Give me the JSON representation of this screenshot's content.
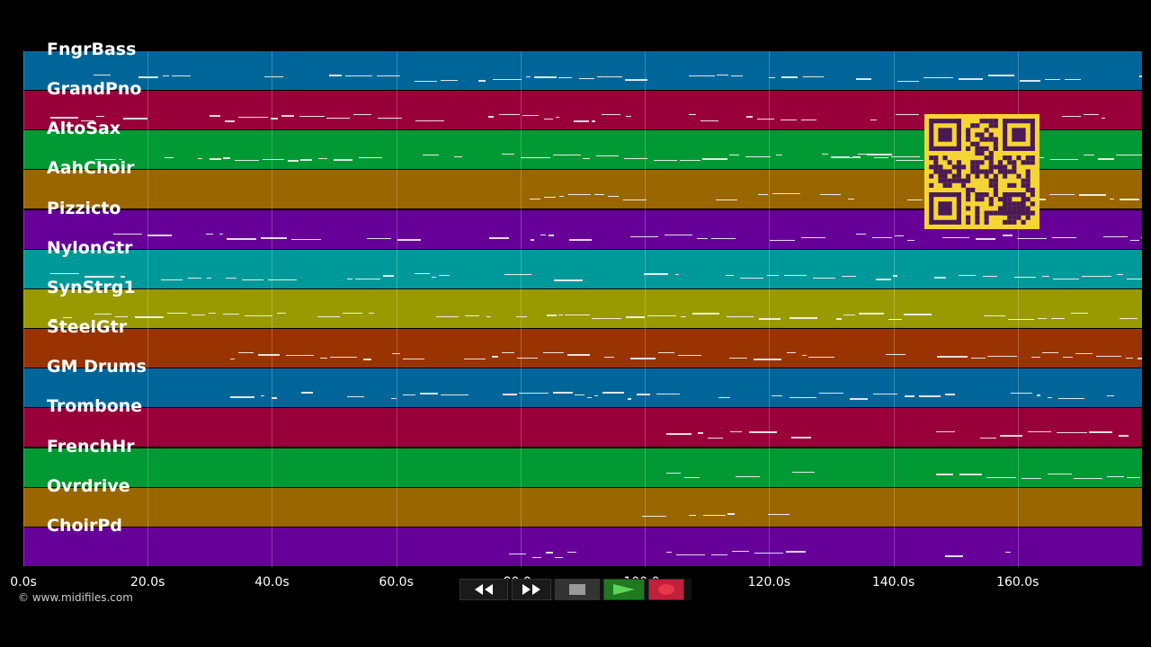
{
  "tracks": [
    {
      "name": "FngrBass",
      "color": "#006699"
    },
    {
      "name": "GrandPno",
      "color": "#99003a"
    },
    {
      "name": "AltoSax",
      "color": "#009933"
    },
    {
      "name": "AahChoir",
      "color": "#996600"
    },
    {
      "name": "Pizzicto",
      "color": "#660099"
    },
    {
      "name": "NylonGtr",
      "color": "#009999"
    },
    {
      "name": "SynStrg1",
      "color": "#999900"
    },
    {
      "name": "SteelGtr",
      "color": "#993300"
    },
    {
      "name": "GM Drums",
      "color": "#006699"
    },
    {
      "name": "Trombone",
      "color": "#99003a"
    },
    {
      "name": "FrenchHr",
      "color": "#009933"
    },
    {
      "name": "Ovrdrive",
      "color": "#996600"
    },
    {
      "name": "ChoirPd",
      "color": "#660099"
    }
  ],
  "timeline": {
    "ticks": [
      "0.0s",
      "20.0s",
      "40.0s",
      "60.0s",
      "80.0s",
      "100.0s",
      "120.0s",
      "140.0s",
      "160.0s"
    ],
    "tick_seconds": [
      0,
      20,
      40,
      60,
      80,
      100,
      120,
      140,
      160
    ],
    "max_seconds": 180
  },
  "copyright": "© www.midifiles.com",
  "transport": {
    "rewind_icon": "rewind-icon",
    "forward_icon": "fast-forward-icon",
    "stop_icon": "stop-icon",
    "play_icon": "play-icon",
    "record_icon": "record-icon"
  },
  "colors": {
    "qr_background": "#f5d533",
    "qr_foreground": "#4a1a55",
    "play_button": "#1e7a1e",
    "record_button": "#c0203a"
  }
}
